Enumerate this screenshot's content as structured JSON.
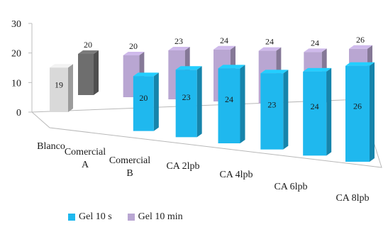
{
  "chart_data": {
    "type": "bar",
    "categories": [
      "Blanco",
      "Comercial A",
      "Comercial B",
      "CA 2lpb",
      "CA 4lpb",
      "CA 6lpb",
      "CA 8lpb"
    ],
    "series": [
      {
        "name": "Gel 10 s",
        "values": [
          19,
          20,
          23,
          24,
          23,
          24,
          26
        ],
        "color": "#1fb8ee"
      },
      {
        "name": "Gel 10 min",
        "values": [
          20,
          20,
          23,
          24,
          24,
          24,
          26
        ],
        "color": "#b9a6d2"
      }
    ],
    "blanco_colors": {
      "front": "#d9d9d9",
      "back": "#6e6e6e"
    },
    "y_ticks": [
      "0",
      "10",
      "20",
      "30"
    ],
    "ylim": [
      0,
      30
    ],
    "category_labels": [
      [
        "Blanco"
      ],
      [
        "Comercial",
        "A"
      ],
      [
        "Comercial",
        "B"
      ],
      [
        "CA 2lpb"
      ],
      [
        "CA 4lpb"
      ],
      [
        "CA 6lpb"
      ],
      [
        "CA 8lpb"
      ]
    ],
    "legend_position": "bottom-left",
    "grid": false,
    "three_d": true
  }
}
